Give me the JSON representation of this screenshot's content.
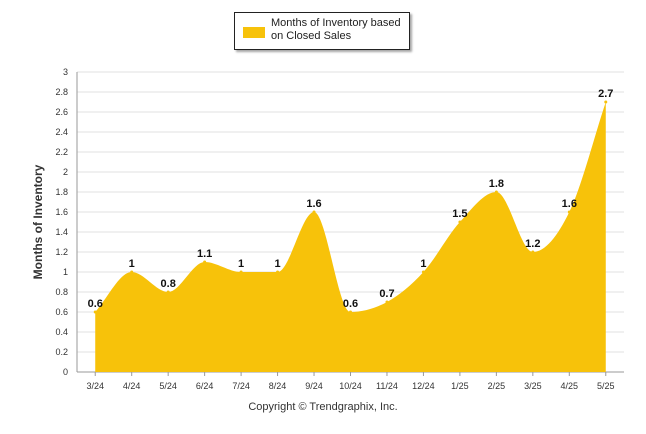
{
  "chart_data": {
    "type": "area",
    "categories": [
      "3/24",
      "4/24",
      "5/24",
      "6/24",
      "7/24",
      "8/24",
      "9/24",
      "10/24",
      "11/24",
      "12/24",
      "1/25",
      "2/25",
      "3/25",
      "4/25",
      "5/25"
    ],
    "series": [
      {
        "name": "Months of Inventory based on Closed Sales",
        "values": [
          0.6,
          1,
          0.8,
          1.1,
          1,
          1,
          1.6,
          0.6,
          0.7,
          1,
          1.5,
          1.8,
          1.2,
          1.6,
          2.7
        ]
      }
    ],
    "data_labels": [
      "0.6",
      "1",
      "0.8",
      "1.1",
      "1",
      "1",
      "1.6",
      "0.6",
      "0.7",
      "1",
      "1.5",
      "1.8",
      "1.2",
      "1.6",
      "2.7"
    ],
    "ylabel": "Months of Inventory",
    "xlabel": "",
    "ylim": [
      0,
      3
    ],
    "yticks": [
      "0",
      "0.2",
      "0.4",
      "0.6",
      "0.8",
      "1",
      "1.2",
      "1.4",
      "1.6",
      "1.8",
      "2",
      "2.2",
      "2.4",
      "2.6",
      "2.8",
      "3"
    ],
    "grid": true,
    "legend": "top-center",
    "colors": {
      "fill": "#F7C20A",
      "grid": "#e2e2e2",
      "axis": "#999999",
      "text": "#333333"
    }
  },
  "legend_label": "Months of Inventory based on Closed Sales",
  "footer": {
    "copyright": "Copyright © Trendgraphix, Inc."
  }
}
